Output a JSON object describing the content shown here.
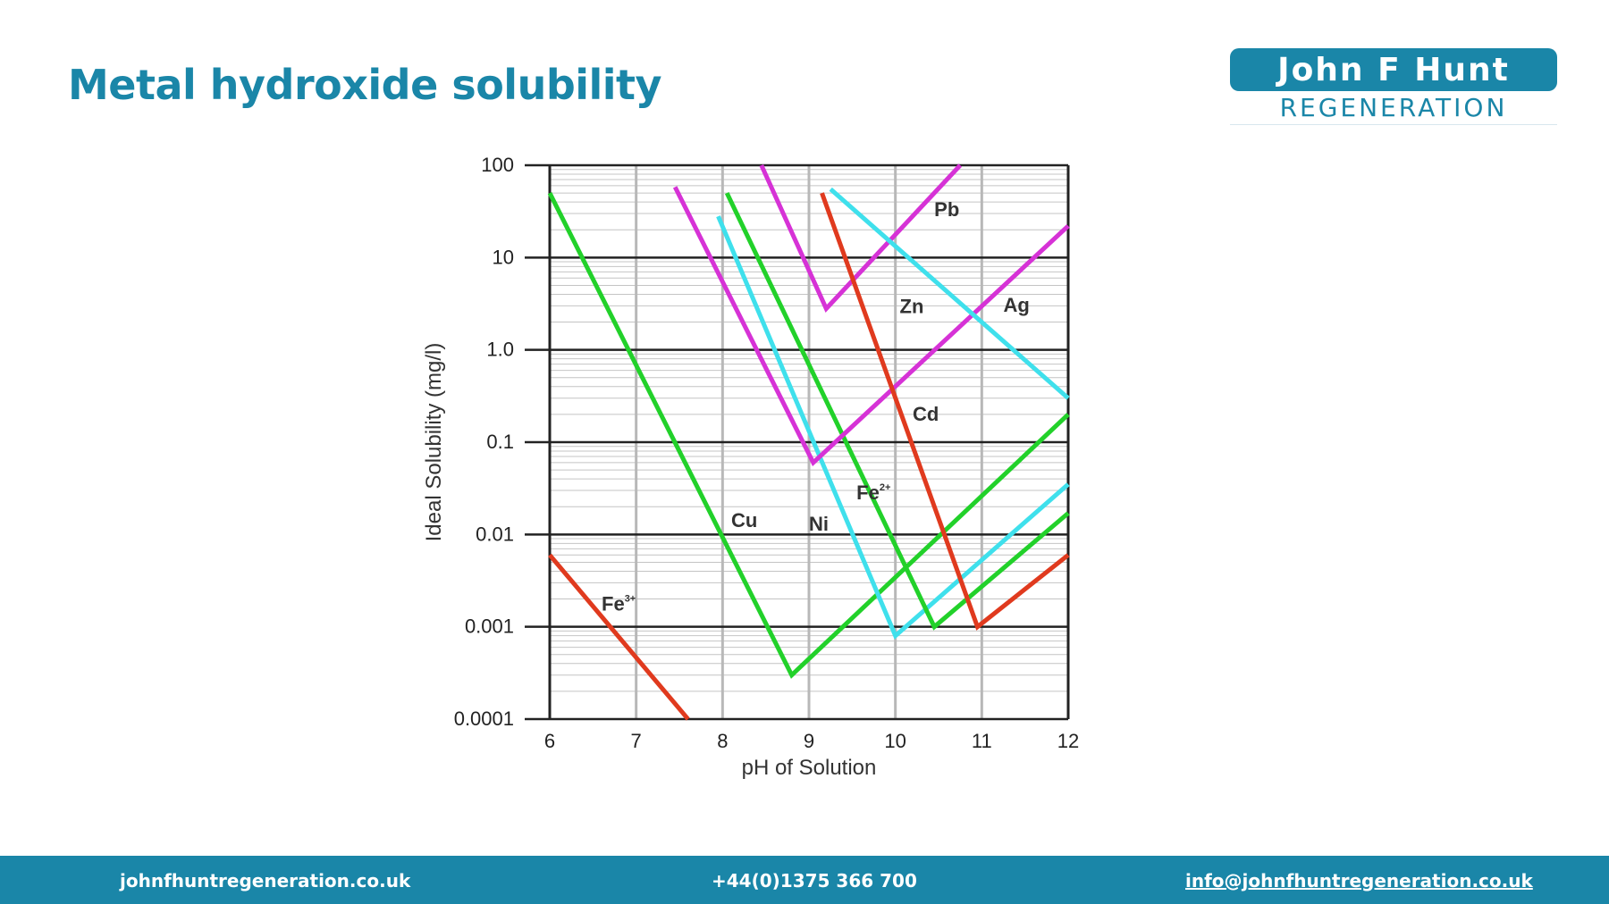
{
  "slide": {
    "title": "Metal hydroxide solubility"
  },
  "logo": {
    "top": "John F Hunt",
    "bottom": "REGENERATION"
  },
  "footer": {
    "website": "johnfhuntregeneration.co.uk",
    "phone": "+44(0)1375 366 700",
    "email": "info@johnfhuntregeneration.co.uk"
  },
  "colors": {
    "brand": "#1a86a8",
    "green": "#22d12a",
    "magenta": "#d632d6",
    "cyan": "#3fe0ec",
    "red": "#e03a1e"
  },
  "chart_data": {
    "type": "line",
    "xlabel": "pH of Solution",
    "ylabel": "Ideal Solubility (mg/l)",
    "xlim": [
      6,
      12
    ],
    "ylim": [
      0.0001,
      100
    ],
    "yscale": "log",
    "x_ticks": [
      "6",
      "7",
      "8",
      "9",
      "10",
      "11",
      "12"
    ],
    "y_ticks": [
      "100",
      "10",
      "1.0",
      "0.1",
      "0.01",
      "0.001",
      "0.0001"
    ],
    "grid": true,
    "series": [
      {
        "name": "Fe3+",
        "label_main": "Fe",
        "label_sup": "3+",
        "color": "red",
        "label_at": [
          6.6,
          0.0015
        ],
        "points": [
          [
            6.0,
            0.006
          ],
          [
            7.6,
            0.0001
          ]
        ]
      },
      {
        "name": "Cu",
        "label_main": "Cu",
        "label_sup": "",
        "color": "green",
        "label_at": [
          8.1,
          0.012
        ],
        "points": [
          [
            6.0,
            50
          ],
          [
            8.8,
            0.0003
          ],
          [
            12.0,
            0.2
          ]
        ]
      },
      {
        "name": "Ni",
        "label_main": "Ni",
        "label_sup": "",
        "color": "cyan",
        "label_at": [
          9.0,
          0.011
        ],
        "points": [
          [
            7.95,
            28
          ],
          [
            10.0,
            0.0008
          ],
          [
            12.0,
            0.035
          ]
        ]
      },
      {
        "name": "Fe2+",
        "label_main": "Fe",
        "label_sup": "2+",
        "color": "green",
        "label_at": [
          9.55,
          0.024
        ],
        "points": [
          [
            8.05,
            50
          ],
          [
            10.45,
            0.001
          ],
          [
            12.0,
            0.017
          ]
        ]
      },
      {
        "name": "Zn",
        "label_main": "Zn",
        "label_sup": "",
        "color": "magenta",
        "label_at": [
          10.05,
          2.5
        ],
        "points": [
          [
            7.45,
            58
          ],
          [
            9.05,
            0.06
          ],
          [
            12.0,
            22
          ]
        ]
      },
      {
        "name": "Pb",
        "label_main": "Pb",
        "label_sup": "",
        "color": "magenta",
        "label_at": [
          10.45,
          28
        ],
        "points": [
          [
            8.45,
            100
          ],
          [
            9.2,
            2.8
          ],
          [
            10.75,
            100
          ]
        ]
      },
      {
        "name": "Cd",
        "label_main": "Cd",
        "label_sup": "",
        "color": "red",
        "label_at": [
          10.2,
          0.17
        ],
        "points": [
          [
            9.15,
            50
          ],
          [
            10.95,
            0.001
          ],
          [
            12.0,
            0.006
          ]
        ]
      },
      {
        "name": "Ag",
        "label_main": "Ag",
        "label_sup": "",
        "color": "cyan",
        "label_at": [
          11.25,
          2.6
        ],
        "points": [
          [
            9.25,
            55
          ],
          [
            12.0,
            0.3
          ]
        ]
      }
    ]
  }
}
